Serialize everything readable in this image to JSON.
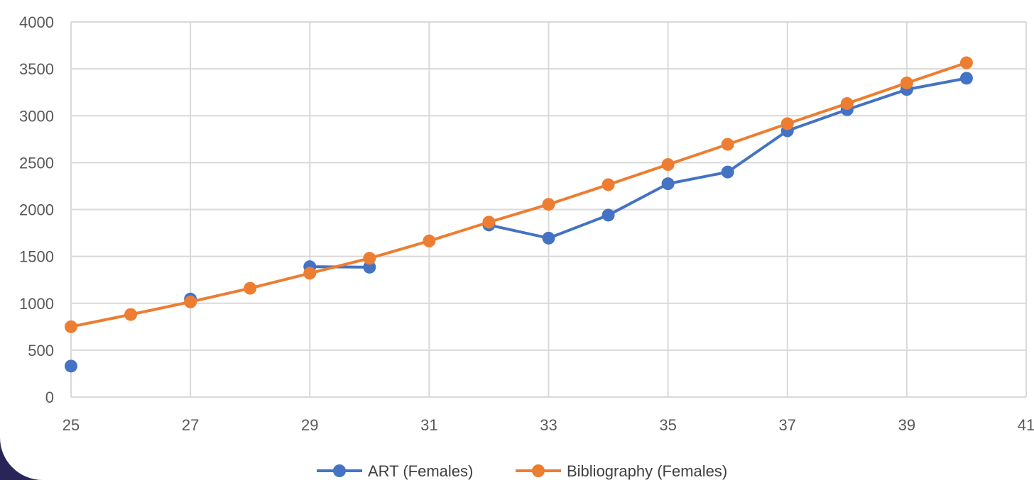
{
  "chart_data": {
    "type": "scatter",
    "title": "",
    "xlabel": "",
    "ylabel": "",
    "xlim": [
      25,
      41
    ],
    "ylim": [
      0,
      4000
    ],
    "x_ticks": [
      25,
      27,
      29,
      31,
      33,
      35,
      37,
      39,
      41
    ],
    "y_ticks": [
      0,
      500,
      1000,
      1500,
      2000,
      2500,
      3000,
      3500,
      4000
    ],
    "grid": true,
    "legend_position": "bottom",
    "series": [
      {
        "name": "ART  (Females)",
        "color": "#4472c4",
        "points": [
          {
            "x": 25,
            "y": 330
          },
          {
            "x": 27,
            "y": 1045
          },
          {
            "x": 29,
            "y": 1390
          },
          {
            "x": 30,
            "y": 1385
          },
          {
            "x": 32,
            "y": 1835
          },
          {
            "x": 33,
            "y": 1695
          },
          {
            "x": 34,
            "y": 1940
          },
          {
            "x": 35,
            "y": 2275
          },
          {
            "x": 36,
            "y": 2400
          },
          {
            "x": 37,
            "y": 2840
          },
          {
            "x": 38,
            "y": 3065
          },
          {
            "x": 39,
            "y": 3280
          },
          {
            "x": 40,
            "y": 3400
          }
        ],
        "segments": [
          [
            2,
            3
          ],
          [
            4,
            5,
            6,
            7,
            8,
            9,
            10,
            11,
            12
          ]
        ]
      },
      {
        "name": "Bibliography (Females)",
        "color": "#ed7d31",
        "points": [
          {
            "x": 25,
            "y": 750
          },
          {
            "x": 26,
            "y": 880
          },
          {
            "x": 27,
            "y": 1015
          },
          {
            "x": 28,
            "y": 1160
          },
          {
            "x": 29,
            "y": 1320
          },
          {
            "x": 30,
            "y": 1480
          },
          {
            "x": 31,
            "y": 1665
          },
          {
            "x": 32,
            "y": 1865
          },
          {
            "x": 33,
            "y": 2055
          },
          {
            "x": 34,
            "y": 2265
          },
          {
            "x": 35,
            "y": 2480
          },
          {
            "x": 36,
            "y": 2695
          },
          {
            "x": 37,
            "y": 2915
          },
          {
            "x": 38,
            "y": 3130
          },
          {
            "x": 39,
            "y": 3350
          },
          {
            "x": 40,
            "y": 3565
          }
        ],
        "segments": [
          [
            0,
            1,
            2,
            3,
            4,
            5,
            6,
            7,
            8,
            9,
            10,
            11,
            12,
            13,
            14,
            15
          ]
        ]
      }
    ]
  }
}
